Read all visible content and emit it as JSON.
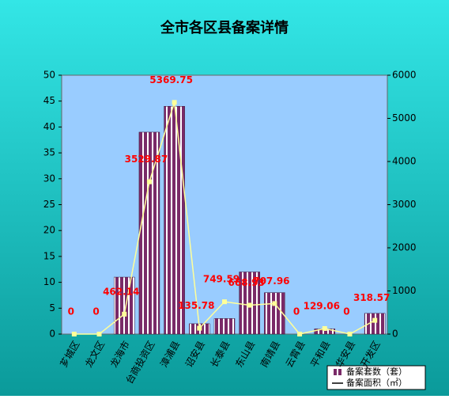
{
  "chart_data": {
    "type": "bar_line",
    "title": "全市各区县备案详情",
    "categories": [
      "芗城区",
      "龙文区",
      "龙海市",
      "台商投资区",
      "漳浦县",
      "诏安县",
      "长泰县",
      "东山县",
      "南靖县",
      "云霄县",
      "平和县",
      "华安县",
      "开发区"
    ],
    "series": [
      {
        "name": "备案套数（套）",
        "type": "bar",
        "color": "#7a2a68",
        "values": [
          0,
          0,
          11,
          39,
          44,
          2,
          3,
          12,
          8,
          0,
          1,
          0,
          4
        ]
      },
      {
        "name": "备案面积（㎡）",
        "type": "line",
        "axis": "y2",
        "color": "#ffff99",
        "values": [
          0,
          0,
          462.14,
          3529.87,
          5369.75,
          135.78,
          749.59,
          668.93,
          707.96,
          0,
          129.06,
          0,
          318.57
        ]
      }
    ],
    "ylim": [
      0,
      50
    ],
    "yticks": [
      0,
      5,
      10,
      15,
      20,
      25,
      30,
      35,
      40,
      45,
      50
    ],
    "y2lim": [
      0,
      6000
    ],
    "y2ticks": [
      0,
      1000,
      2000,
      3000,
      4000,
      5000,
      6000
    ]
  }
}
